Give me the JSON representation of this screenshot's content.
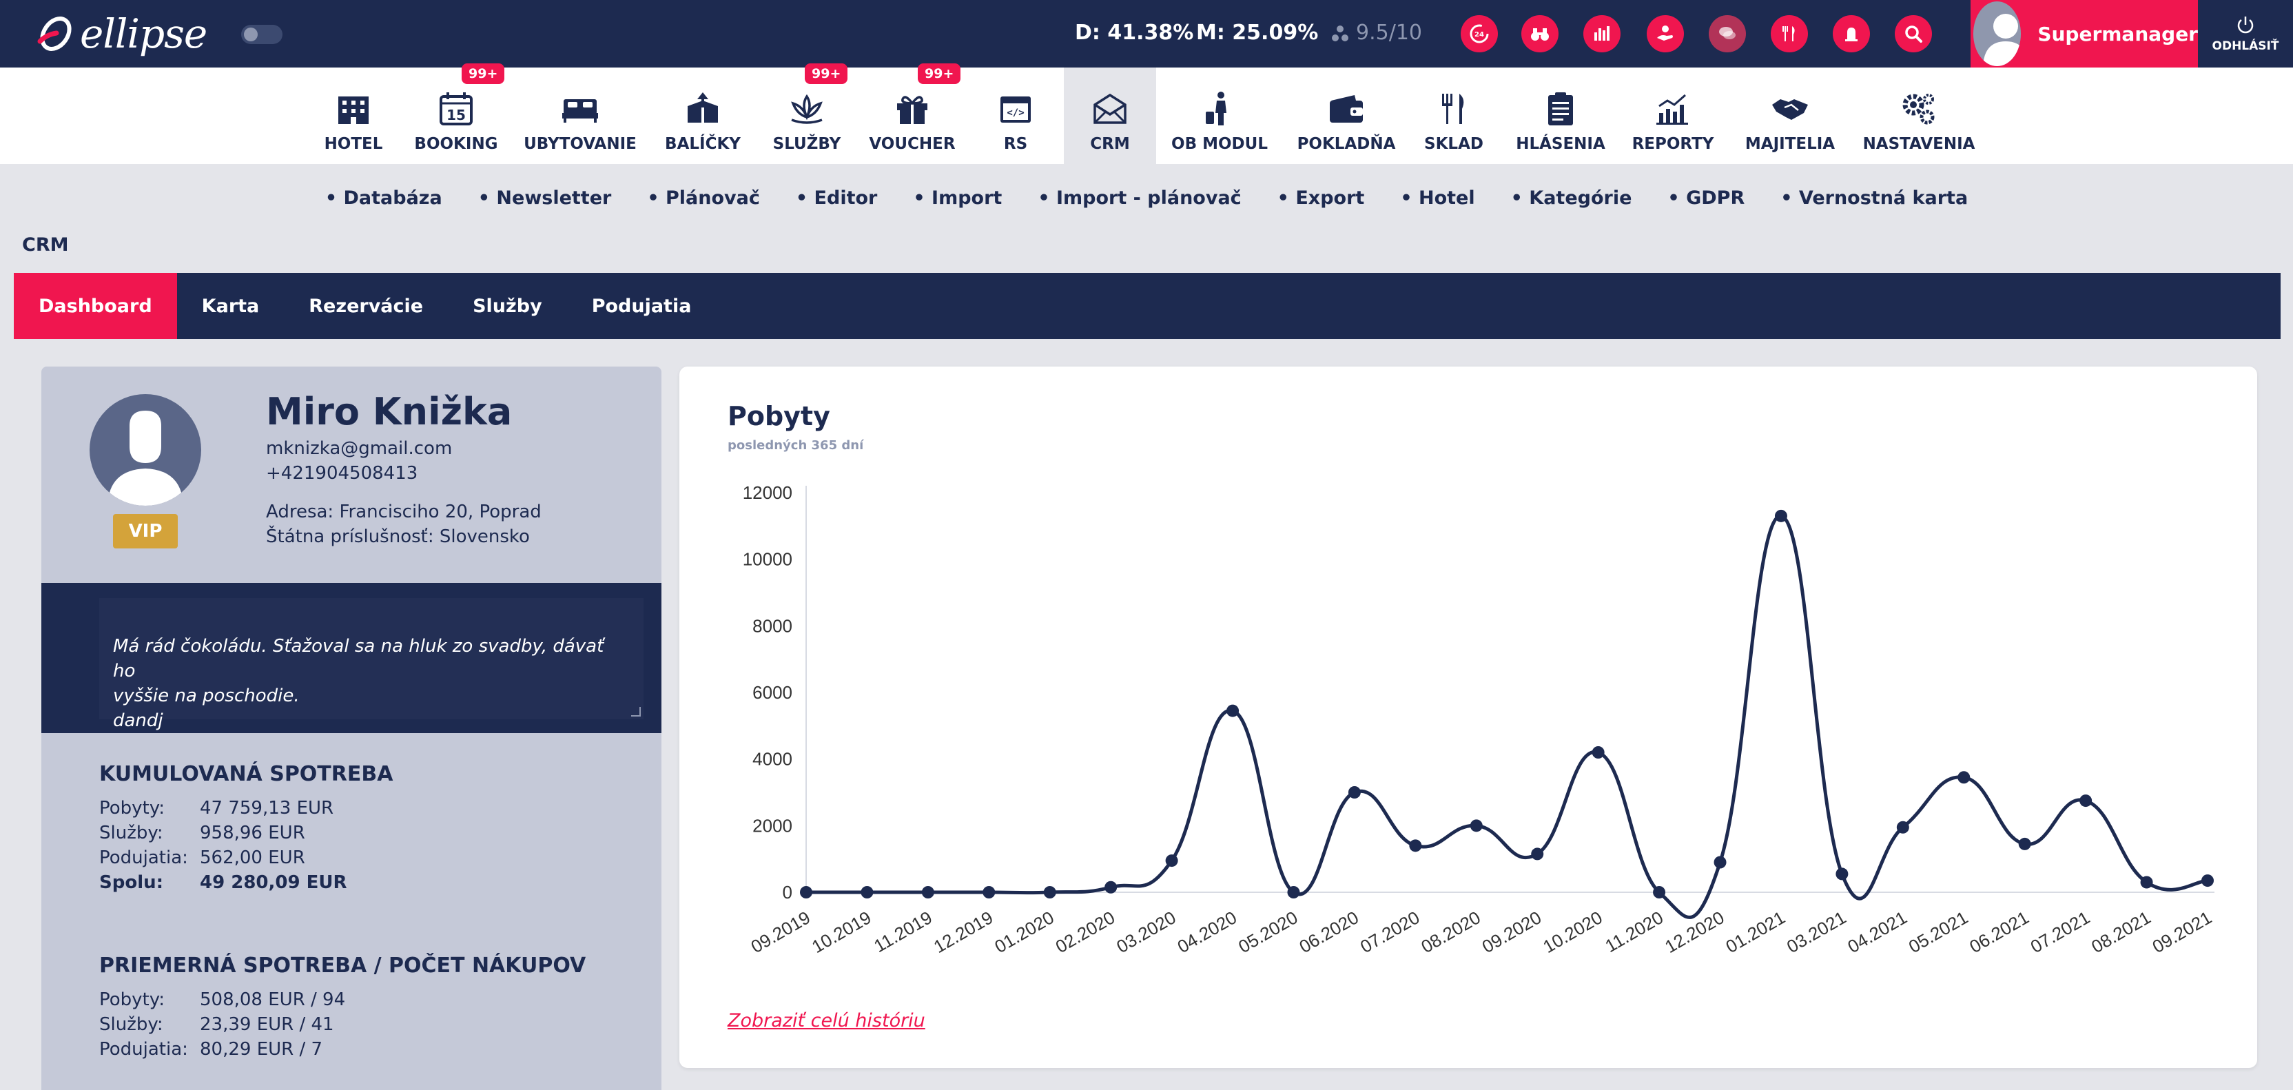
{
  "app": {
    "logo_text": "ellipse"
  },
  "topbar": {
    "stat_d": "D: 41.38%",
    "stat_m": "M: 25.09%",
    "rating": "9.5/10",
    "user_name": "Supermanager",
    "logout_label": "ODHLÁSIŤ",
    "accent": "#f0164f",
    "bg": "#1d2a50"
  },
  "modules": [
    {
      "label": "HOTEL",
      "icon": "building-icon"
    },
    {
      "label": "BOOKING",
      "icon": "calendar-icon",
      "badge": "99+",
      "icon_text": "15"
    },
    {
      "label": "UBYTOVANIE",
      "icon": "bed-icon"
    },
    {
      "label": "BALÍČKY",
      "icon": "package-icon"
    },
    {
      "label": "SLUŽBY",
      "icon": "lotus-icon",
      "badge": "99+"
    },
    {
      "label": "VOUCHER",
      "icon": "gift-icon",
      "badge": "99+"
    },
    {
      "label": "RS",
      "icon": "code-window-icon"
    },
    {
      "label": "CRM",
      "icon": "mail-icon",
      "active": true
    },
    {
      "label": "OB MODUL",
      "icon": "traveler-icon"
    },
    {
      "label": "POKLADŇA",
      "icon": "wallet-icon"
    },
    {
      "label": "SKLAD",
      "icon": "cutlery-icon"
    },
    {
      "label": "HLÁSENIA",
      "icon": "clipboard-icon"
    },
    {
      "label": "REPORTY",
      "icon": "chart-icon"
    },
    {
      "label": "MAJITELIA",
      "icon": "handshake-icon"
    },
    {
      "label": "NASTAVENIA",
      "icon": "gears-icon"
    }
  ],
  "subnav": [
    "Databáza",
    "Newsletter",
    "Plánovač",
    "Editor",
    "Import",
    "Import - plánovač",
    "Export",
    "Hotel",
    "Kategórie",
    "GDPR",
    "Vernostná karta"
  ],
  "page_title": "CRM",
  "tabs": [
    {
      "label": "Dashboard",
      "active": true
    },
    {
      "label": "Karta"
    },
    {
      "label": "Rezervácie"
    },
    {
      "label": "Služby"
    },
    {
      "label": "Podujatia"
    }
  ],
  "profile": {
    "name": "Miro Knižka",
    "email": "mknizka@gmail.com",
    "phone": "+421904508413",
    "address": "Adresa: Francisciho 20, Poprad",
    "nationality": "Štátna príslušnosť: Slovensko",
    "vip": "VIP",
    "note": "Má rád čokoládu. Sťažoval sa na hluk zo svadby, dávať ho\nvyššie na poschodie.\ndandj"
  },
  "cumulative": {
    "title": "KUMULOVANÁ SPOTREBA",
    "rows": [
      {
        "k": "Pobyty:",
        "v": "47 759,13 EUR"
      },
      {
        "k": "Služby:",
        "v": "958,96 EUR"
      },
      {
        "k": "Podujatia:",
        "v": "562,00 EUR"
      },
      {
        "k": "Spolu:",
        "v": "49 280,09 EUR"
      }
    ]
  },
  "average": {
    "title": "PRIEMERNÁ SPOTREBA / POČET NÁKUPOV",
    "rows": [
      {
        "k": "Pobyty:",
        "v": "508,08 EUR / 94"
      },
      {
        "k": "Služby:",
        "v": "23,39 EUR / 41"
      },
      {
        "k": "Podujatia:",
        "v": "80,29 EUR / 7"
      }
    ]
  },
  "chart_card": {
    "title": "Pobyty",
    "subtitle": "posledných 365 dní",
    "history_link": "Zobraziť celú históriu"
  },
  "chart_data": {
    "type": "line",
    "categories": [
      "09.2019",
      "10.2019",
      "11.2019",
      "12.2019",
      "01.2020",
      "02.2020",
      "03.2020",
      "04.2020",
      "05.2020",
      "06.2020",
      "07.2020",
      "08.2020",
      "09.2020",
      "10.2020",
      "11.2020",
      "12.2020",
      "01.2021",
      "03.2021",
      "04.2021",
      "05.2021",
      "06.2021",
      "07.2021",
      "08.2021",
      "09.2021"
    ],
    "values": [
      0,
      0,
      0,
      0,
      0,
      150,
      950,
      5450,
      0,
      3000,
      1400,
      2000,
      1150,
      4200,
      0,
      900,
      11300,
      550,
      1950,
      3450,
      1450,
      2750,
      300,
      350
    ],
    "ylim": [
      0,
      12000
    ],
    "yticks": [
      0,
      2000,
      4000,
      6000,
      8000,
      10000,
      12000
    ],
    "color": "#1d2a50",
    "smooth": true,
    "grid": false,
    "legend": "none"
  }
}
